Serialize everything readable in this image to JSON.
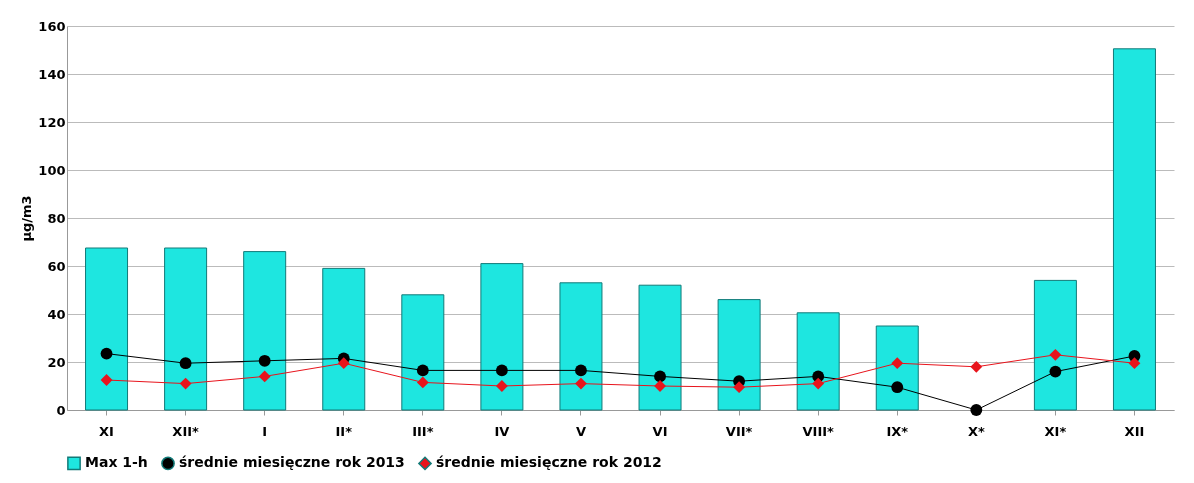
{
  "chart_data": {
    "type": "bar",
    "ylabel": "µg/m3",
    "categories": [
      "XI",
      "XII*",
      "I",
      "II*",
      "III*",
      "IV",
      "V",
      "VI",
      "VII*",
      "VIII*",
      "IX*",
      "X*",
      "XI*",
      "XII"
    ],
    "series": [
      {
        "name": "Max 1-h",
        "color": "#1ee6e0",
        "values": [
          67.5,
          67.5,
          66,
          59,
          48,
          61,
          53,
          52,
          46,
          40.5,
          35,
          null,
          54,
          150.5
        ]
      },
      {
        "name": "średnie miesięczne rok 2013",
        "type": "line",
        "color": "#000000",
        "marker": "circle",
        "values": [
          23.5,
          19.5,
          20.5,
          21.5,
          16.5,
          16.5,
          16.5,
          14,
          12,
          14,
          9.5,
          0,
          16,
          22.5
        ]
      },
      {
        "name": "średnie miesięczne rok 2012",
        "type": "line",
        "color": "#e8141c",
        "marker": "diamond",
        "values": [
          12.5,
          11,
          14,
          19.5,
          11.5,
          10,
          11,
          10,
          9.5,
          11,
          19.5,
          18,
          23,
          19.5
        ]
      }
    ],
    "ylim": [
      0,
      160
    ],
    "yticks": [
      0,
      20,
      40,
      60,
      80,
      100,
      120,
      140,
      160
    ],
    "grid": "y",
    "legend": "bottom"
  }
}
